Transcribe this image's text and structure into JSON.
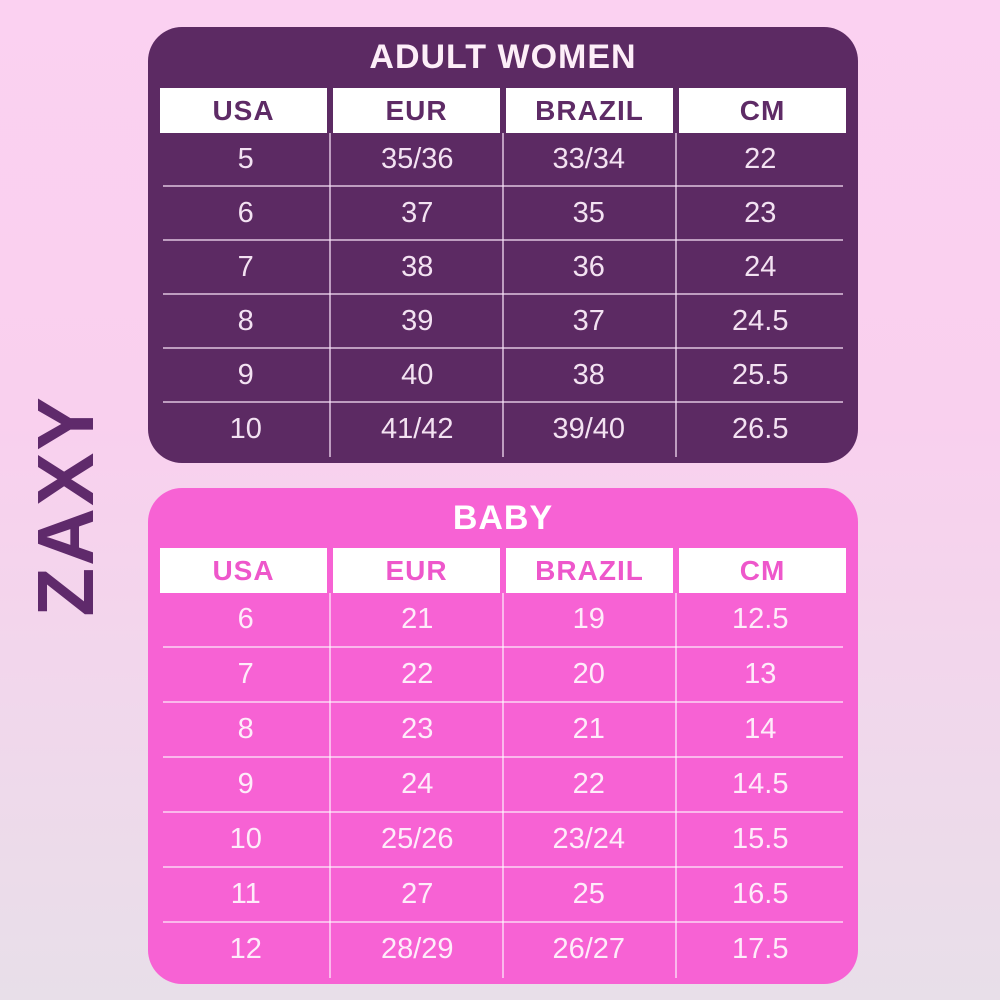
{
  "brand": {
    "logo_text": "ZAXY",
    "logo_color": "#5f2a6b"
  },
  "background": {
    "gradient_top": "#fbd1f1",
    "gradient_bottom": "#e8dfe9"
  },
  "chart_data": [
    {
      "type": "table",
      "title": "ADULT WOMEN",
      "theme": {
        "panel_bg": "#5c2a63",
        "title_text": "#fdeef8",
        "header_cell_bg": "#ffffff",
        "header_text": "#5e2b66",
        "data_text": "#f3e2f2",
        "grid_line": "rgba(250,228,250,0.62)"
      },
      "columns": [
        "USA",
        "EUR",
        "BRAZIL",
        "CM"
      ],
      "rows": [
        [
          "5",
          "35/36",
          "33/34",
          "22"
        ],
        [
          "6",
          "37",
          "35",
          "23"
        ],
        [
          "7",
          "38",
          "36",
          "24"
        ],
        [
          "8",
          "39",
          "37",
          "24.5"
        ],
        [
          "9",
          "40",
          "38",
          "25.5"
        ],
        [
          "10",
          "41/42",
          "39/40",
          "26.5"
        ]
      ]
    },
    {
      "type": "table",
      "title": "BABY",
      "theme": {
        "panel_bg": "#f762d4",
        "title_text": "#ffffff",
        "header_cell_bg": "#ffffff",
        "header_text": "#ee57cb",
        "data_text": "#feecfa",
        "grid_line": "rgba(255,255,255,0.55)"
      },
      "columns": [
        "USA",
        "EUR",
        "BRAZIL",
        "CM"
      ],
      "rows": [
        [
          "6",
          "21",
          "19",
          "12.5"
        ],
        [
          "7",
          "22",
          "20",
          "13"
        ],
        [
          "8",
          "23",
          "21",
          "14"
        ],
        [
          "9",
          "24",
          "22",
          "14.5"
        ],
        [
          "10",
          "25/26",
          "23/24",
          "15.5"
        ],
        [
          "11",
          "27",
          "25",
          "16.5"
        ],
        [
          "12",
          "28/29",
          "26/27",
          "17.5"
        ]
      ]
    }
  ]
}
